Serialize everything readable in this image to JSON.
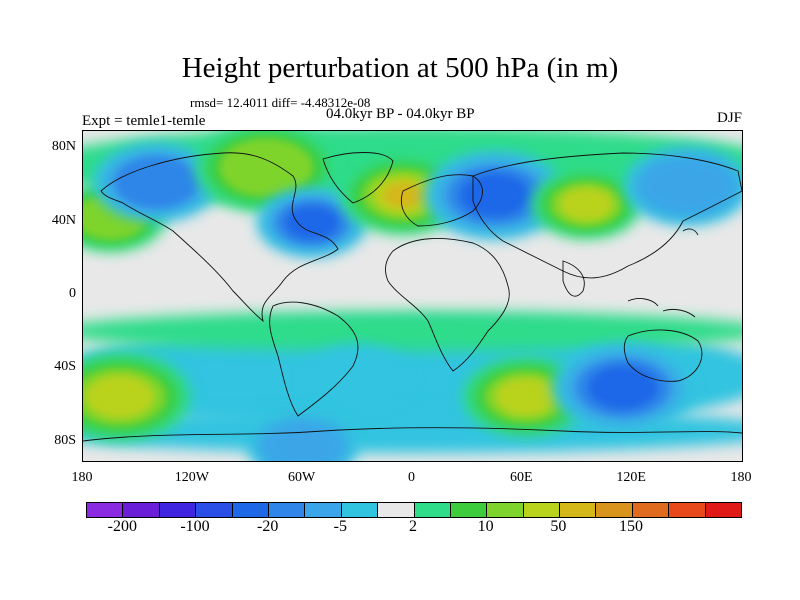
{
  "title": "Height perturbation at 500 hPa (in m)",
  "stats": "rmsd= 12.4011 diff= -4.48312e-08",
  "experiment": "Expt = temle1-temle",
  "period": "04.0kyr BP - 04.0kyr BP",
  "season": "DJF",
  "map": {
    "projection": "cylindrical equidistant",
    "lon_range": [
      -180,
      180
    ],
    "lat_range": [
      -90,
      90
    ],
    "lat_ticks": [
      {
        "value": 80,
        "label": "80N"
      },
      {
        "value": 40,
        "label": "40N"
      },
      {
        "value": 0,
        "label": "0"
      },
      {
        "value": -40,
        "label": "40S"
      },
      {
        "value": -80,
        "label": "80S"
      }
    ],
    "lon_ticks": [
      {
        "value": -180,
        "label": "180"
      },
      {
        "value": -120,
        "label": "120W"
      },
      {
        "value": -60,
        "label": "60W"
      },
      {
        "value": 0,
        "label": "0"
      },
      {
        "value": 60,
        "label": "60E"
      },
      {
        "value": 120,
        "label": "120E"
      },
      {
        "value": 180,
        "label": "180"
      }
    ],
    "background_color": "#e8e8e8",
    "features": [
      {
        "name": "nw-pacific-positive",
        "lon": -165,
        "lat": 43,
        "value": 12
      },
      {
        "name": "north-america-negative",
        "lon": -140,
        "lat": 62,
        "value": -12
      },
      {
        "name": "greenland-canada-positive",
        "lon": -80,
        "lat": 70,
        "value": 12
      },
      {
        "name": "north-atlantic-negative",
        "lon": -55,
        "lat": 40,
        "value": -25
      },
      {
        "name": "europe-positive",
        "lon": -5,
        "lat": 55,
        "value": 60
      },
      {
        "name": "siberia-negative",
        "lon": 45,
        "lat": 55,
        "value": -25
      },
      {
        "name": "asia-positive",
        "lon": 95,
        "lat": 50,
        "value": 30
      },
      {
        "name": "nw-pacific-negative",
        "lon": 150,
        "lat": 60,
        "value": -8
      },
      {
        "name": "south-pacific-positive",
        "lon": -160,
        "lat": -55,
        "value": 40
      },
      {
        "name": "south-atlantic-negative",
        "lon": -30,
        "lat": -45,
        "value": -4
      },
      {
        "name": "southern-indian-positive",
        "lon": 62,
        "lat": -55,
        "value": 25
      },
      {
        "name": "australia-south-negative",
        "lon": 115,
        "lat": -50,
        "value": -25
      },
      {
        "name": "antarctic-negative",
        "lon": -60,
        "lat": -82,
        "value": -8
      }
    ]
  },
  "colorbar": {
    "colors": [
      "#8a2be2",
      "#6a1ed8",
      "#3f24e0",
      "#2a4fe6",
      "#1e68e8",
      "#2f86e8",
      "#3aa5e8",
      "#30c4e0",
      "#e8e8e8",
      "#2fdc8a",
      "#3ccc3c",
      "#7ed42c",
      "#b9d21c",
      "#d4b81a",
      "#d8941c",
      "#e06a1e",
      "#e84a1c",
      "#e01a16"
    ],
    "labels": [
      {
        "text": "-200",
        "index": 1
      },
      {
        "text": "-100",
        "index": 3
      },
      {
        "text": "-20",
        "index": 5
      },
      {
        "text": "-5",
        "index": 7
      },
      {
        "text": "2",
        "index": 9
      },
      {
        "text": "10",
        "index": 11
      },
      {
        "text": "50",
        "index": 13
      },
      {
        "text": "150",
        "index": 15
      }
    ]
  }
}
